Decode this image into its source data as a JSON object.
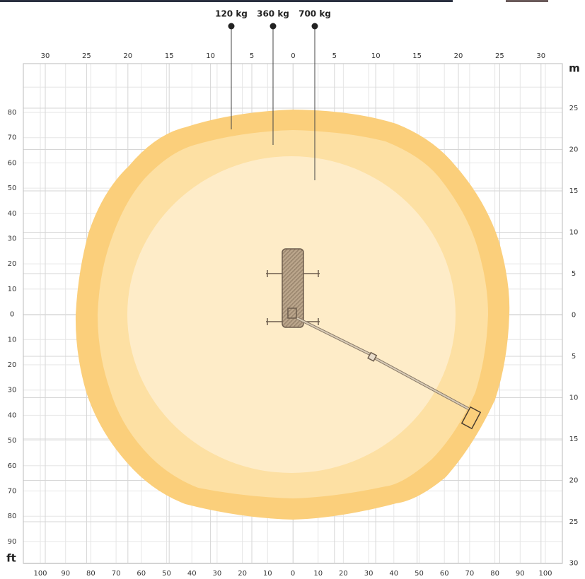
{
  "load_labels": [
    "120 kg",
    "360 kg",
    "700 kg"
  ],
  "top_scale": [
    30,
    25,
    20,
    15,
    10,
    5,
    0,
    5,
    10,
    15,
    20,
    25,
    30
  ],
  "right_unit": "m",
  "right_scale": [
    25,
    20,
    15,
    10,
    5,
    0,
    5,
    10,
    15,
    20,
    25,
    30
  ],
  "left_scale": [
    80,
    70,
    60,
    50,
    40,
    30,
    20,
    10,
    0,
    10,
    20,
    30,
    40,
    50,
    60,
    70,
    80,
    90
  ],
  "left_unit": "ft",
  "bottom_scale": [
    100,
    90,
    80,
    70,
    60,
    50,
    40,
    30,
    20,
    10,
    0,
    10,
    20,
    30,
    40,
    50,
    60,
    70,
    80,
    90,
    100
  ]
}
